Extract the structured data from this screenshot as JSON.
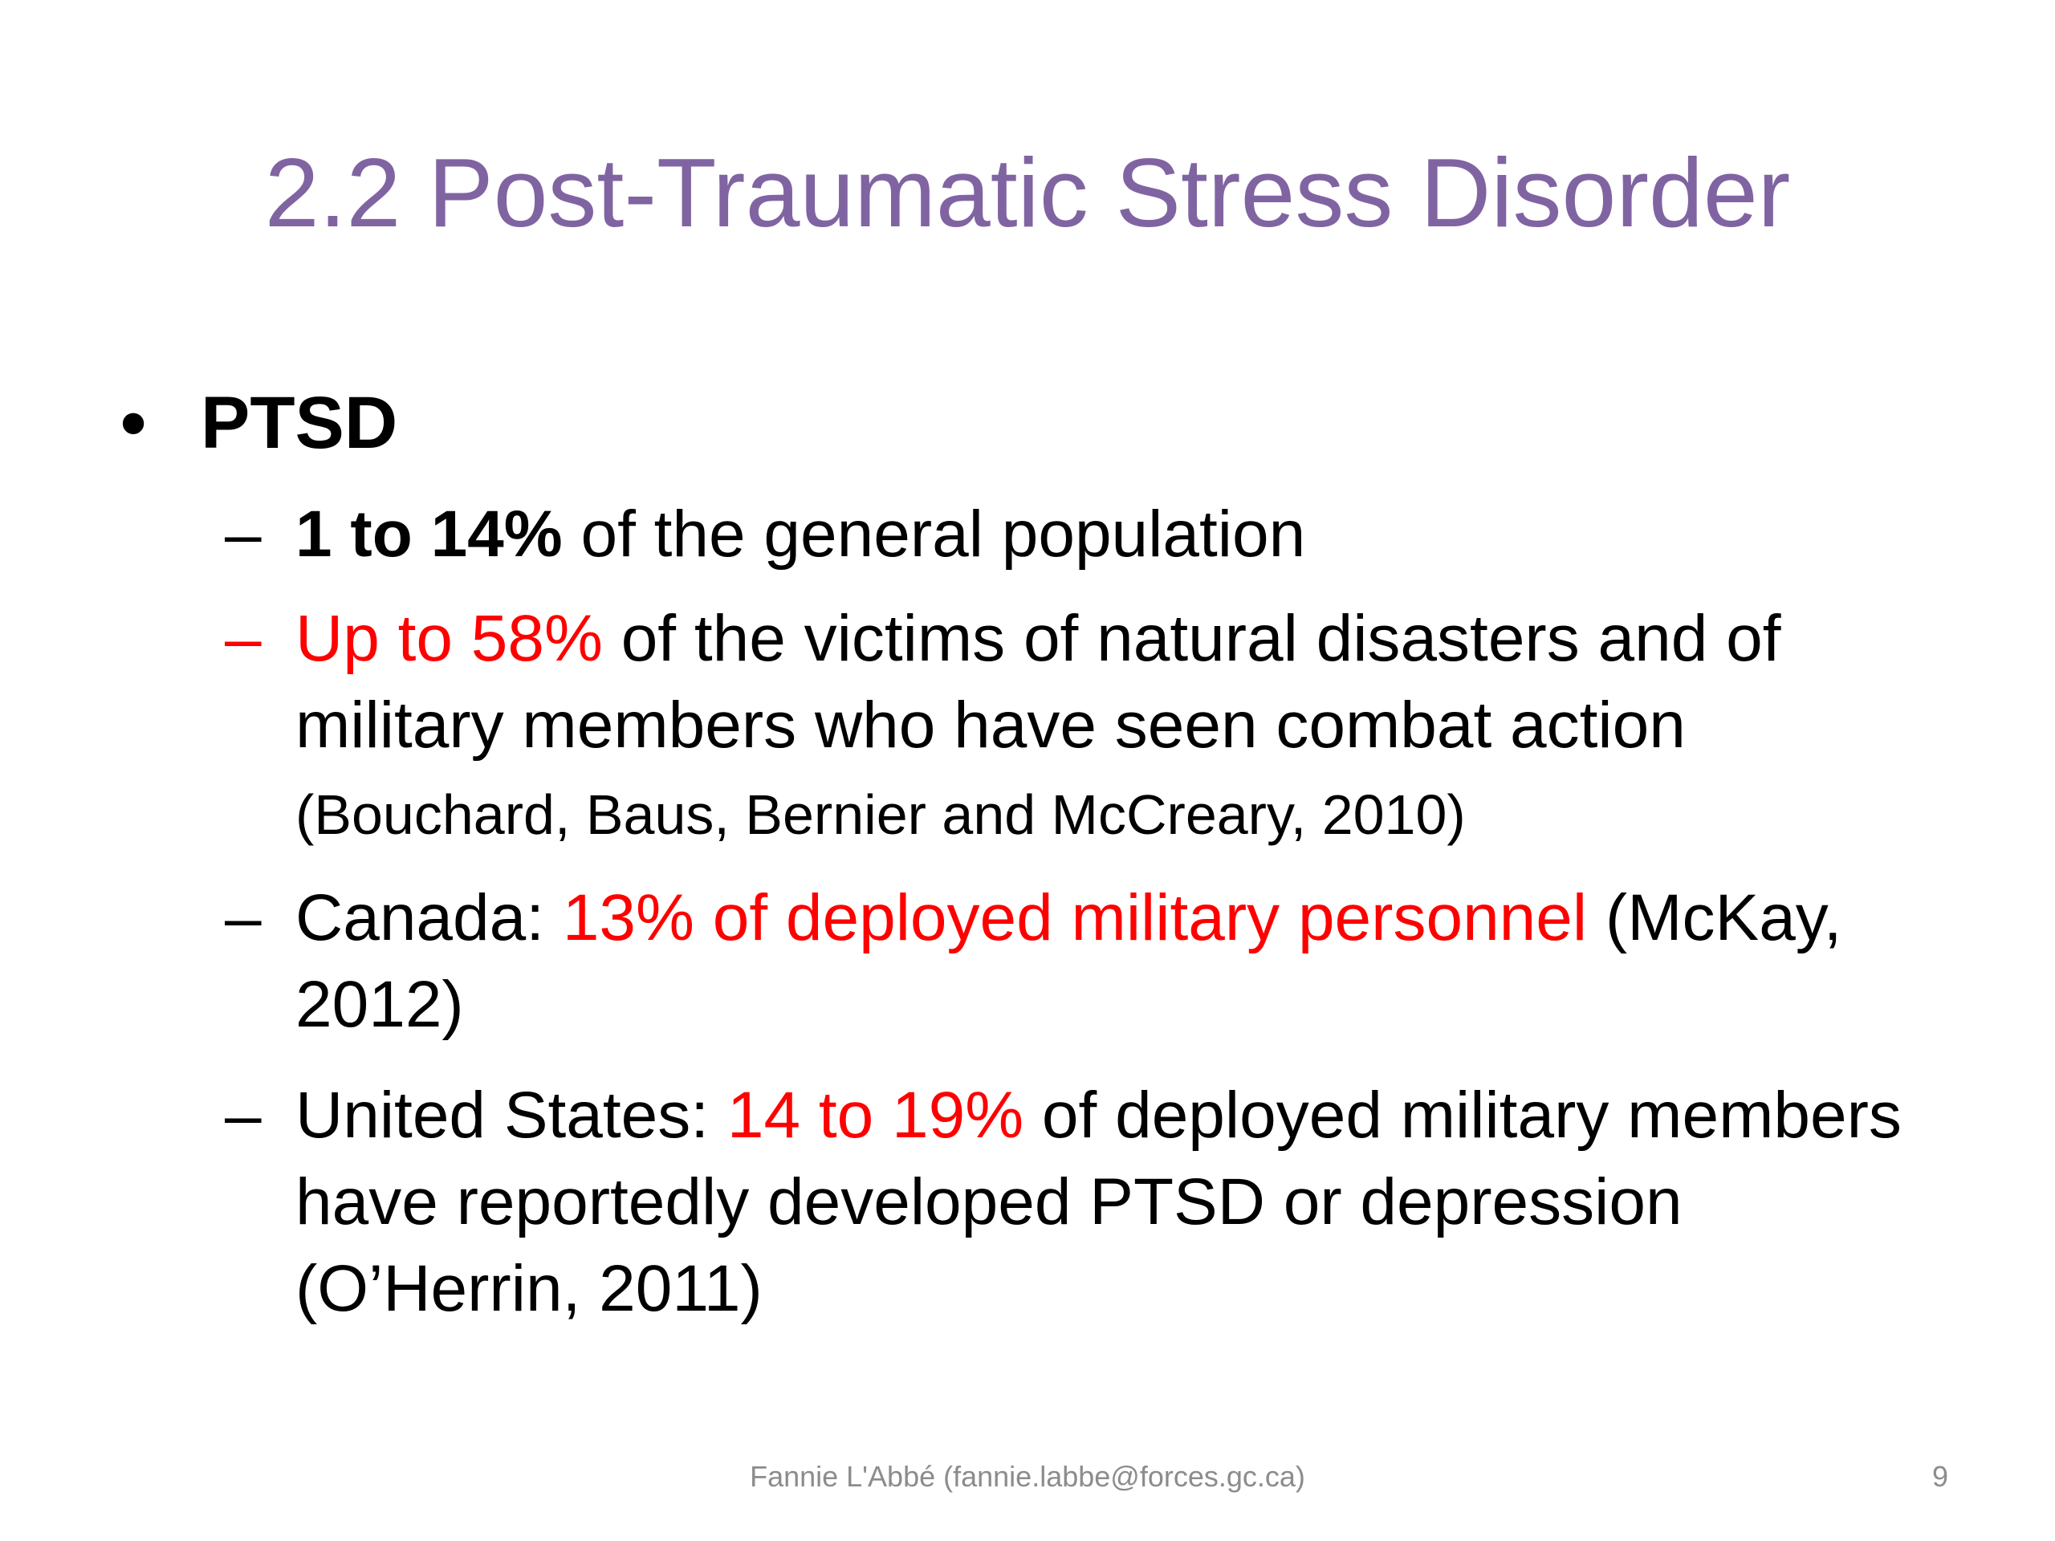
{
  "slide": {
    "title": "2.2 Post-Traumatic Stress Disorder",
    "colors": {
      "title": "#8064a2",
      "highlight": "#ff0000",
      "text": "#000000",
      "footer": "#8c8c8c"
    },
    "bullet": {
      "symbol": "•",
      "label": "PTSD"
    },
    "items": [
      {
        "dash": "–",
        "bold": "1 to 14%",
        "text": " of the general population"
      },
      {
        "dash": "–",
        "highlight": "Up to 58%",
        "text": " of the victims of natural disasters and of military members who have seen combat action ",
        "citation": "(Bouchard, Baus, Bernier and McCreary, 2010)"
      },
      {
        "dash": "–",
        "prefix": "Canada: ",
        "highlight": "13% of deployed military personnel",
        "text": " (McKay, 2012)"
      },
      {
        "dash": "–",
        "prefix": "United States: ",
        "highlight": "14 to 19%",
        "text": " of deployed military members have reportedly developed PTSD or depression (O’Herrin, 2011)"
      }
    ],
    "footer": "Fannie L'Abbé (fannie.labbe@forces.gc.ca)",
    "page_number": "9"
  }
}
